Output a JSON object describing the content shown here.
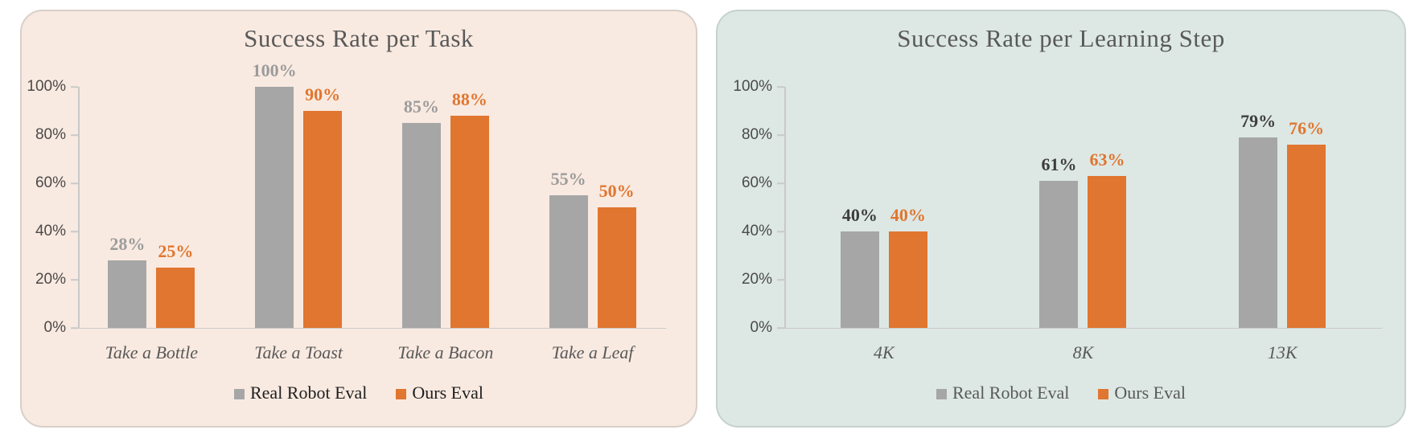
{
  "chart_data": [
    {
      "type": "bar",
      "title": "Success Rate per Task",
      "categories": [
        "Take a Bottle",
        "Take a Toast",
        "Take a Bacon",
        "Take a Leaf"
      ],
      "series": [
        {
          "name": "Real Robot Eval",
          "color": "#a6a6a6",
          "label_color": "#9b9b9b",
          "values": [
            28,
            100,
            85,
            55
          ]
        },
        {
          "name": "Ours Eval",
          "color": "#e0762f",
          "label_color": "#e0762f",
          "values": [
            25,
            90,
            88,
            50
          ]
        }
      ],
      "value_suffix": "%",
      "y_ticks": [
        "100%",
        "80%",
        "60%",
        "40%",
        "20%",
        "0%"
      ],
      "ylim": [
        0,
        100
      ],
      "xlabel": "",
      "ylabel": "",
      "grid": false,
      "legend_position": "bottom",
      "colors": {
        "panel_bg": "#f9eae1",
        "panel_border": "#d8cfc8",
        "legend_text": "#1f1f1f",
        "axis_line": "#c9c9c9",
        "tick_label": "#4a4a4a",
        "x_label": "#595959",
        "title": "#595959"
      }
    },
    {
      "type": "bar",
      "title": "Success Rate per Learning Step",
      "categories": [
        "4K",
        "8K",
        "13K"
      ],
      "series": [
        {
          "name": "Real Robot Eval",
          "color": "#a6a6a6",
          "label_color": "#3d3d3d",
          "values": [
            40,
            61,
            79
          ]
        },
        {
          "name": "Ours Eval",
          "color": "#e0762f",
          "label_color": "#e0762f",
          "values": [
            40,
            63,
            76
          ]
        }
      ],
      "value_suffix": "%",
      "y_ticks": [
        "100%",
        "80%",
        "60%",
        "40%",
        "20%",
        "0%"
      ],
      "ylim": [
        0,
        100
      ],
      "xlabel": "",
      "ylabel": "",
      "grid": false,
      "legend_position": "bottom",
      "colors": {
        "panel_bg": "#dde8e5",
        "panel_border": "#c5d2cf",
        "legend_text": "#595959",
        "axis_line": "#c9c9c9",
        "tick_label": "#4a4a4a",
        "x_label": "#595959",
        "title": "#595959"
      }
    }
  ]
}
